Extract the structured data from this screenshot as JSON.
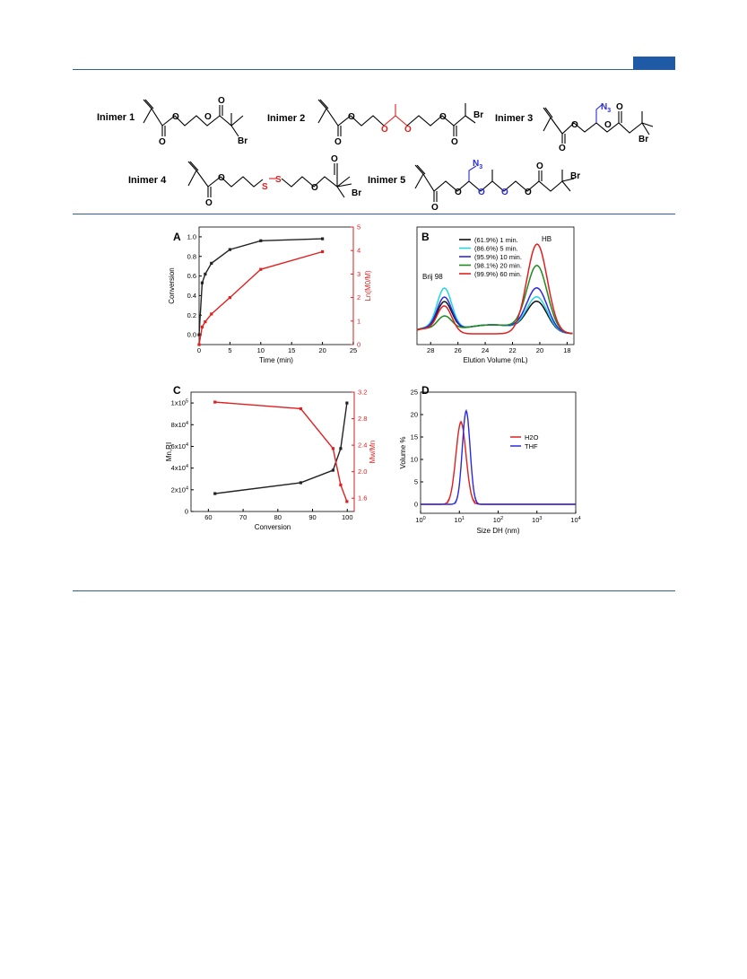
{
  "header": {
    "rule_color": "#2f5f9e",
    "badge_color": "#1f5aa6"
  },
  "scheme": {
    "inimers": [
      {
        "label": "Inimer 1"
      },
      {
        "label": "Inimer 2"
      },
      {
        "label": "Inimer 3"
      },
      {
        "label": "Inimer 4"
      },
      {
        "label": "Inimer 5"
      }
    ],
    "atoms": {
      "O": "O",
      "Br": "Br",
      "S": "S",
      "N3": "N",
      "N3_sub": "3"
    }
  },
  "chart_data": [
    {
      "panel": "A",
      "type": "line",
      "xlabel": "Time (min)",
      "ylabel_left": "Conversion",
      "ylabel_right": "Ln(M0/M)",
      "xlim": [
        0,
        25
      ],
      "ylim_left": [
        -0.1,
        1.1
      ],
      "ylim_right": [
        0,
        5
      ],
      "xticks": [
        "0",
        "5",
        "10",
        "15",
        "20",
        "25"
      ],
      "yticks_left": [
        "0.0",
        "0.2",
        "0.4",
        "0.6",
        "0.8",
        "1.0"
      ],
      "yticks_right": [
        "0",
        "1",
        "2",
        "3",
        "4",
        "5"
      ],
      "series": [
        {
          "axis": "left",
          "color": "#222222",
          "x": [
            0,
            0.5,
            1,
            2,
            5,
            10,
            20
          ],
          "y": [
            0.0,
            0.53,
            0.62,
            0.73,
            0.87,
            0.96,
            0.98
          ]
        },
        {
          "axis": "right",
          "color": "#e02020",
          "x": [
            0,
            0.5,
            1,
            2,
            5,
            10,
            20
          ],
          "y": [
            0.0,
            0.75,
            0.97,
            1.3,
            2.0,
            3.2,
            3.95
          ]
        }
      ]
    },
    {
      "panel": "B",
      "type": "line",
      "xlabel": "Elution Volume (mL)",
      "xlim": [
        29,
        17.5
      ],
      "xticks": [
        "28",
        "26",
        "24",
        "22",
        "20",
        "18"
      ],
      "annotations": [
        "Brij 98",
        "HB"
      ],
      "legend": "top-left",
      "series": [
        {
          "name": "(61.9%) 1 min.",
          "color": "#111111",
          "brij": 0.33,
          "hb": 0.33
        },
        {
          "name": "(86.6%) 5 min.",
          "color": "#22d4e6",
          "brij": 0.48,
          "hb": 0.38
        },
        {
          "name": "(95.9%) 10 min.",
          "color": "#2a2ae0",
          "brij": 0.38,
          "hb": 0.48
        },
        {
          "name": "(98.1%) 20 min.",
          "color": "#1e8a1e",
          "brij": 0.17,
          "hb": 0.73
        },
        {
          "name": "(99.9%) 60 min.",
          "color": "#e02020",
          "brij": 0.31,
          "hb": 1.0
        }
      ]
    },
    {
      "panel": "C",
      "type": "line",
      "xlabel": "Conversion",
      "ylabel_left": "Mn,RI",
      "ylabel_right": "Mw/Mn",
      "xlim": [
        55,
        102
      ],
      "ylim_left": [
        0,
        110000
      ],
      "ylim_right": [
        1.4,
        3.2
      ],
      "xticks": [
        "60",
        "70",
        "80",
        "90",
        "100"
      ],
      "yticks_left": [
        "0",
        "2x10^4",
        "4x10^4",
        "6x10^4",
        "8x10^4",
        "1x10^5"
      ],
      "yticks_right": [
        "1.6",
        "2.0",
        "2.4",
        "2.8",
        "3.2"
      ],
      "series": [
        {
          "axis": "left",
          "color": "#222222",
          "x": [
            61.9,
            86.6,
            95.9,
            98.1,
            99.9
          ],
          "y": [
            16500,
            26500,
            38000,
            58000,
            100000
          ]
        },
        {
          "axis": "right",
          "color": "#e02020",
          "x": [
            61.9,
            86.6,
            95.9,
            98.1,
            99.9
          ],
          "y": [
            3.05,
            2.95,
            2.35,
            1.8,
            1.55
          ]
        }
      ]
    },
    {
      "panel": "D",
      "type": "line",
      "xlabel": "Size DH (nm)",
      "ylabel": "Volume %",
      "xscale": "log",
      "xlim": [
        1,
        10000
      ],
      "ylim": [
        -2,
        25
      ],
      "xticks": [
        "10^0",
        "10^1",
        "10^2",
        "10^3",
        "10^4"
      ],
      "yticks": [
        "0",
        "5",
        "10",
        "15",
        "20",
        "25"
      ],
      "legend": "right",
      "series": [
        {
          "name": "H2O",
          "color": "#e02020",
          "peak_x": 11,
          "peak_y": 18.3,
          "width": 0.13
        },
        {
          "name": "THF",
          "color": "#2a2ae0",
          "peak_x": 15,
          "peak_y": 20.8,
          "width": 0.1
        }
      ]
    }
  ]
}
